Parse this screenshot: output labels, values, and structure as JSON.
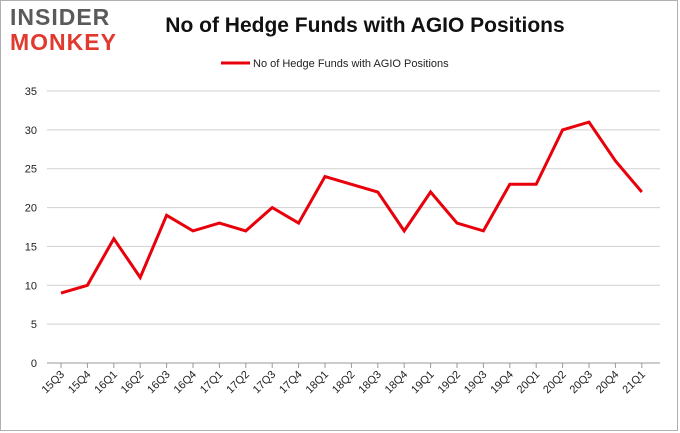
{
  "logo": {
    "line1": "INSIDER",
    "line2": "MONKEY"
  },
  "chart_data": {
    "type": "line",
    "title": "No of Hedge Funds with AGIO Positions",
    "xlabel": "",
    "ylabel": "",
    "ylim": [
      0,
      35
    ],
    "yticks": [
      0,
      5,
      10,
      15,
      20,
      25,
      30,
      35
    ],
    "grid": true,
    "legend_position": "top",
    "categories": [
      "15Q3",
      "15Q4",
      "16Q1",
      "16Q2",
      "16Q3",
      "16Q4",
      "17Q1",
      "17Q2",
      "17Q3",
      "17Q4",
      "18Q1",
      "18Q2",
      "18Q3",
      "18Q4",
      "19Q1",
      "19Q2",
      "19Q3",
      "19Q4",
      "20Q1",
      "20Q2",
      "20Q3",
      "20Q4",
      "21Q1"
    ],
    "series": [
      {
        "name": "No of Hedge Funds with AGIO Positions",
        "color": "#e8000b",
        "values": [
          9,
          10,
          16,
          11,
          19,
          17,
          18,
          17,
          20,
          18,
          24,
          23,
          22,
          17,
          22,
          18,
          17,
          23,
          23,
          30,
          31,
          26,
          22
        ]
      }
    ]
  }
}
